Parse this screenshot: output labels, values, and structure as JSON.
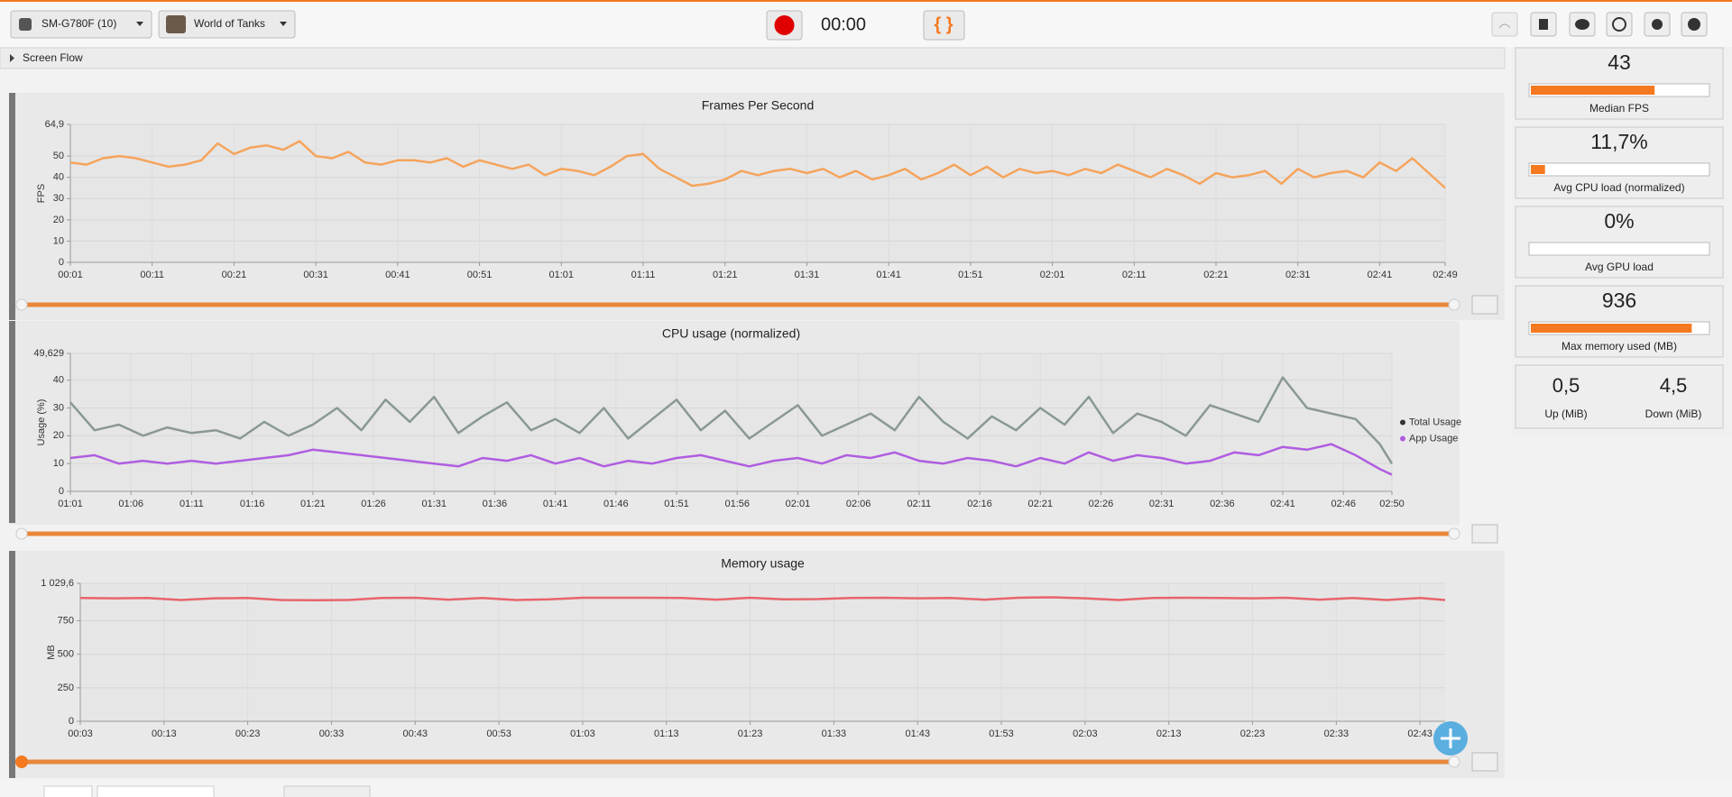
{
  "toolbar": {
    "device": "SM-G780F (10)",
    "app": "World of Tanks",
    "timer": "00:00",
    "json_button": "{ }"
  },
  "screen_flow": "Screen Flow",
  "stats": [
    {
      "value": "43",
      "label": "Median FPS",
      "bar": 70
    },
    {
      "value": "11,7%",
      "label": "Avg CPU load (normalized)",
      "bar": 8
    },
    {
      "value": "0%",
      "label": "Avg GPU load",
      "bar": 0
    },
    {
      "value": "936",
      "label": "Max memory used (MB)",
      "bar": 91
    }
  ],
  "network": {
    "up": "0,5",
    "up_label": "Up (MiB)",
    "down": "4,5",
    "down_label": "Down (MiB)"
  },
  "chart_data": [
    {
      "type": "line",
      "title": "Frames Per Second",
      "y_label": "FPS",
      "grid": true,
      "xlim": [
        1,
        169
      ],
      "ylim": [
        0,
        64.9
      ],
      "yticks": [
        0,
        10,
        20,
        30,
        40,
        50,
        {
          "value": 64.9,
          "label": "64,9"
        }
      ],
      "xticks": [
        {
          "value": 1,
          "label": "00:01"
        },
        {
          "value": 11,
          "label": "00:11"
        },
        {
          "value": 21,
          "label": "00:21"
        },
        {
          "value": 31,
          "label": "00:31"
        },
        {
          "value": 41,
          "label": "00:41"
        },
        {
          "value": 51,
          "label": "00:51"
        },
        {
          "value": 61,
          "label": "01:01"
        },
        {
          "value": 71,
          "label": "01:11"
        },
        {
          "value": 81,
          "label": "01:21"
        },
        {
          "value": 91,
          "label": "01:31"
        },
        {
          "value": 101,
          "label": "01:41"
        },
        {
          "value": 111,
          "label": "01:51"
        },
        {
          "value": 121,
          "label": "02:01"
        },
        {
          "value": 131,
          "label": "02:11"
        },
        {
          "value": 141,
          "label": "02:21"
        },
        {
          "value": 151,
          "label": "02:31"
        },
        {
          "value": 161,
          "label": "02:41"
        },
        {
          "value": 169,
          "label": "02:49"
        }
      ],
      "x": [
        1,
        3,
        5,
        7,
        9,
        11,
        13,
        15,
        17,
        19,
        21,
        23,
        25,
        27,
        29,
        31,
        33,
        35,
        37,
        39,
        41,
        43,
        45,
        47,
        49,
        51,
        53,
        55,
        57,
        59,
        61,
        63,
        65,
        67,
        69,
        71,
        73,
        75,
        77,
        79,
        81,
        83,
        85,
        87,
        89,
        91,
        93,
        95,
        97,
        99,
        101,
        103,
        105,
        107,
        109,
        111,
        113,
        115,
        117,
        119,
        121,
        123,
        125,
        127,
        129,
        131,
        133,
        135,
        137,
        139,
        141,
        143,
        145,
        147,
        149,
        151,
        153,
        155,
        157,
        159,
        161,
        163,
        165,
        167,
        169
      ],
      "series": [
        {
          "name": "FPS",
          "color": "#f5a45c",
          "values": [
            47,
            46,
            49,
            50,
            49,
            47,
            45,
            46,
            48,
            56,
            51,
            54,
            55,
            53,
            57,
            50,
            49,
            52,
            47,
            46,
            48,
            48,
            47,
            49,
            45,
            48,
            46,
            44,
            46,
            41,
            44,
            43,
            41,
            45,
            50,
            51,
            44,
            40,
            36,
            37,
            39,
            43,
            41,
            43,
            44,
            42,
            44,
            40,
            43,
            39,
            41,
            44,
            39,
            42,
            46,
            41,
            45,
            40,
            44,
            42,
            43,
            41,
            44,
            42,
            46,
            43,
            40,
            44,
            41,
            37,
            42,
            40,
            41,
            43,
            37,
            44,
            40,
            42,
            43,
            40,
            47,
            43,
            49,
            42,
            35
          ]
        }
      ]
    },
    {
      "type": "line",
      "title": "CPU usage (normalized)",
      "y_label": "Usage (%)",
      "grid": true,
      "legend": "right",
      "xlim": [
        61,
        170
      ],
      "ylim": [
        0,
        49.629
      ],
      "yticks": [
        0,
        10,
        20,
        30,
        40,
        {
          "value": 49.629,
          "label": "49,629"
        }
      ],
      "xticks": [
        {
          "value": 61,
          "label": "01:01"
        },
        {
          "value": 66,
          "label": "01:06"
        },
        {
          "value": 71,
          "label": "01:11"
        },
        {
          "value": 76,
          "label": "01:16"
        },
        {
          "value": 81,
          "label": "01:21"
        },
        {
          "value": 86,
          "label": "01:26"
        },
        {
          "value": 91,
          "label": "01:31"
        },
        {
          "value": 96,
          "label": "01:36"
        },
        {
          "value": 101,
          "label": "01:41"
        },
        {
          "value": 106,
          "label": "01:46"
        },
        {
          "value": 111,
          "label": "01:51"
        },
        {
          "value": 116,
          "label": "01:56"
        },
        {
          "value": 121,
          "label": "02:01"
        },
        {
          "value": 126,
          "label": "02:06"
        },
        {
          "value": 131,
          "label": "02:11"
        },
        {
          "value": 136,
          "label": "02:16"
        },
        {
          "value": 141,
          "label": "02:21"
        },
        {
          "value": 146,
          "label": "02:26"
        },
        {
          "value": 151,
          "label": "02:31"
        },
        {
          "value": 156,
          "label": "02:36"
        },
        {
          "value": 161,
          "label": "02:41"
        },
        {
          "value": 166,
          "label": "02:46"
        },
        {
          "value": 170,
          "label": "02:50"
        }
      ],
      "x": [
        61,
        63,
        65,
        67,
        69,
        71,
        73,
        75,
        77,
        79,
        81,
        83,
        85,
        87,
        89,
        91,
        93,
        95,
        97,
        99,
        101,
        103,
        105,
        107,
        109,
        111,
        113,
        115,
        117,
        119,
        121,
        123,
        125,
        127,
        129,
        131,
        133,
        135,
        137,
        139,
        141,
        143,
        145,
        147,
        149,
        151,
        153,
        155,
        157,
        159,
        161,
        163,
        165,
        167,
        169,
        170
      ],
      "series": [
        {
          "name": "Total Usage",
          "color": "#8a9894",
          "values": [
            32,
            22,
            24,
            20,
            23,
            21,
            22,
            19,
            25,
            20,
            24,
            30,
            22,
            33,
            25,
            34,
            21,
            27,
            32,
            22,
            26,
            21,
            30,
            19,
            26,
            33,
            22,
            29,
            19,
            25,
            31,
            20,
            24,
            28,
            22,
            34,
            25,
            19,
            27,
            22,
            30,
            24,
            34,
            21,
            28,
            25,
            20,
            31,
            28,
            25,
            41,
            30,
            28,
            26,
            17,
            10
          ]
        },
        {
          "name": "App Usage",
          "color": "#b05de0",
          "values": [
            12,
            13,
            10,
            11,
            10,
            11,
            10,
            11,
            12,
            13,
            15,
            14,
            13,
            12,
            11,
            10,
            9,
            12,
            11,
            13,
            10,
            12,
            9,
            11,
            10,
            12,
            13,
            11,
            9,
            11,
            12,
            10,
            13,
            12,
            14,
            11,
            10,
            12,
            11,
            9,
            12,
            10,
            14,
            11,
            13,
            12,
            10,
            11,
            14,
            13,
            16,
            15,
            17,
            13,
            8,
            6
          ]
        }
      ]
    },
    {
      "type": "line",
      "title": "Memory usage",
      "y_label": "MB",
      "grid": true,
      "xlim": [
        3,
        166
      ],
      "ylim": [
        0,
        1029.6
      ],
      "yticks": [
        0,
        250,
        500,
        750,
        {
          "value": 1029.6,
          "label": "1 029,6"
        }
      ],
      "xticks": [
        {
          "value": 3,
          "label": "00:03"
        },
        {
          "value": 13,
          "label": "00:13"
        },
        {
          "value": 23,
          "label": "00:23"
        },
        {
          "value": 33,
          "label": "00:33"
        },
        {
          "value": 43,
          "label": "00:43"
        },
        {
          "value": 53,
          "label": "00:53"
        },
        {
          "value": 63,
          "label": "01:03"
        },
        {
          "value": 73,
          "label": "01:13"
        },
        {
          "value": 83,
          "label": "01:23"
        },
        {
          "value": 93,
          "label": "01:33"
        },
        {
          "value": 103,
          "label": "01:43"
        },
        {
          "value": 113,
          "label": "01:53"
        },
        {
          "value": 123,
          "label": "02:03"
        },
        {
          "value": 133,
          "label": "02:13"
        },
        {
          "value": 143,
          "label": "02:23"
        },
        {
          "value": 153,
          "label": "02:33"
        },
        {
          "value": 163,
          "label": "02:43"
        }
      ],
      "x": [
        3,
        7,
        11,
        15,
        19,
        23,
        27,
        31,
        35,
        39,
        43,
        47,
        51,
        55,
        59,
        63,
        67,
        71,
        75,
        79,
        83,
        87,
        91,
        95,
        99,
        103,
        107,
        111,
        115,
        119,
        123,
        127,
        131,
        135,
        139,
        143,
        147,
        151,
        155,
        159,
        163,
        166
      ],
      "series": [
        {
          "name": "Memory",
          "color": "#e8646c",
          "values": [
            920,
            918,
            920,
            905,
            918,
            920,
            905,
            903,
            905,
            920,
            922,
            908,
            920,
            905,
            910,
            922,
            922,
            922,
            920,
            908,
            922,
            910,
            912,
            920,
            922,
            918,
            920,
            908,
            922,
            925,
            918,
            905,
            920,
            922,
            920,
            918,
            922,
            908,
            920,
            905,
            920,
            905
          ]
        }
      ]
    }
  ]
}
